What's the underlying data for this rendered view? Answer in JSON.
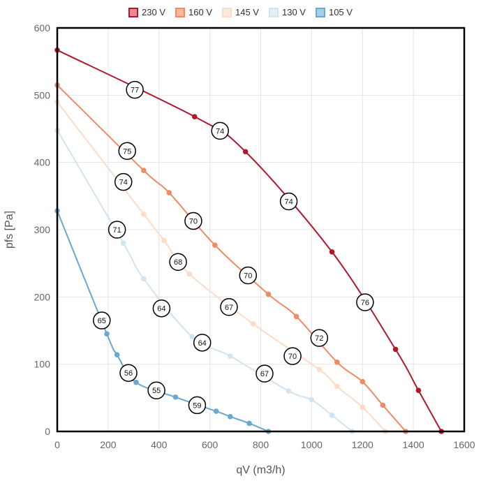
{
  "chart_data": {
    "type": "line",
    "xlabel": "qV (m3/h)",
    "ylabel": "pfs [Pa]",
    "xlim": [
      0,
      1600
    ],
    "ylim": [
      0,
      600
    ],
    "xticks": [
      "0",
      "200",
      "400",
      "600",
      "800",
      "1000",
      "1200",
      "1400",
      "1600"
    ],
    "yticks": [
      "0",
      "100",
      "200",
      "300",
      "400",
      "500",
      "600"
    ],
    "grid": true,
    "legend_position": "top-center",
    "series": [
      {
        "name": "230 V",
        "color": "#b2182b",
        "fill": "#e8899a",
        "points": [
          [
            0,
            567
          ],
          [
            540,
            468
          ],
          [
            740,
            416
          ],
          [
            1080,
            267
          ],
          [
            1330,
            122
          ],
          [
            1420,
            61
          ],
          [
            1510,
            0
          ]
        ]
      },
      {
        "name": "160 V",
        "color": "#ef8a62",
        "fill": "#f6b89c",
        "points": [
          [
            0,
            515
          ],
          [
            340,
            388
          ],
          [
            440,
            355
          ],
          [
            620,
            277
          ],
          [
            830,
            204
          ],
          [
            940,
            171
          ],
          [
            1100,
            103
          ],
          [
            1200,
            74
          ],
          [
            1280,
            39
          ],
          [
            1370,
            0
          ]
        ]
      },
      {
        "name": "145 V",
        "color": "#fddbc7",
        "fill": "#fde8dc",
        "points": [
          [
            0,
            490
          ],
          [
            340,
            323
          ],
          [
            420,
            284
          ],
          [
            520,
            234
          ],
          [
            770,
            160
          ],
          [
            1030,
            92
          ],
          [
            1100,
            67
          ],
          [
            1200,
            36
          ],
          [
            1290,
            0
          ]
        ]
      },
      {
        "name": "130 V",
        "color": "#d1e5f0",
        "fill": "#e4f0f7",
        "points": [
          [
            0,
            448
          ],
          [
            260,
            280
          ],
          [
            340,
            227
          ],
          [
            530,
            141
          ],
          [
            680,
            112
          ],
          [
            910,
            60
          ],
          [
            1000,
            47
          ],
          [
            1080,
            24
          ],
          [
            1160,
            0
          ]
        ]
      },
      {
        "name": "105 V",
        "color": "#67a9cf",
        "fill": "#a8cfe6",
        "points": [
          [
            0,
            328
          ],
          [
            195,
            145
          ],
          [
            235,
            114
          ],
          [
            310,
            73
          ],
          [
            465,
            51
          ],
          [
            625,
            30
          ],
          [
            680,
            22
          ],
          [
            755,
            12
          ],
          [
            830,
            0
          ]
        ]
      }
    ],
    "annotations": [
      {
        "text": "77",
        "x": 305,
        "y": 508
      },
      {
        "text": "74",
        "x": 640,
        "y": 447
      },
      {
        "text": "74",
        "x": 910,
        "y": 342
      },
      {
        "text": "76",
        "x": 1210,
        "y": 192
      },
      {
        "text": "75",
        "x": 275,
        "y": 417
      },
      {
        "text": "70",
        "x": 535,
        "y": 313
      },
      {
        "text": "70",
        "x": 750,
        "y": 232
      },
      {
        "text": "72",
        "x": 1030,
        "y": 139
      },
      {
        "text": "74",
        "x": 260,
        "y": 371
      },
      {
        "text": "68",
        "x": 475,
        "y": 252
      },
      {
        "text": "67",
        "x": 675,
        "y": 185
      },
      {
        "text": "70",
        "x": 925,
        "y": 112
      },
      {
        "text": "71",
        "x": 235,
        "y": 300
      },
      {
        "text": "64",
        "x": 410,
        "y": 183
      },
      {
        "text": "64",
        "x": 570,
        "y": 132
      },
      {
        "text": "67",
        "x": 815,
        "y": 86
      },
      {
        "text": "65",
        "x": 175,
        "y": 165
      },
      {
        "text": "56",
        "x": 280,
        "y": 87
      },
      {
        "text": "55",
        "x": 390,
        "y": 61
      },
      {
        "text": "59",
        "x": 550,
        "y": 39
      }
    ]
  }
}
